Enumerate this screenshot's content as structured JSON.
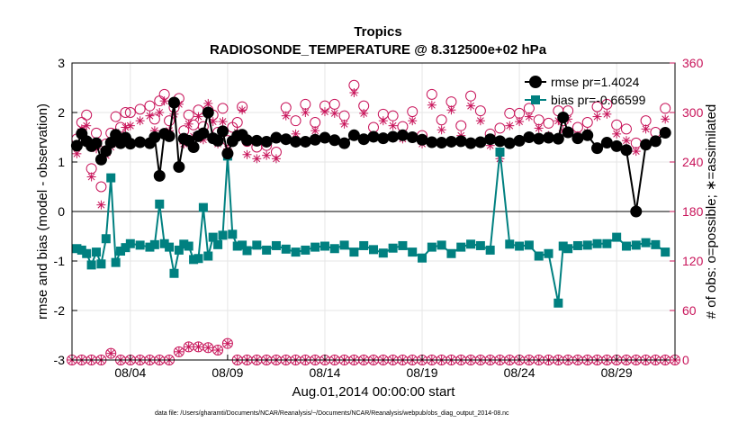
{
  "chart_data": {
    "type": "line",
    "title": "Tropics",
    "subtitle": "RADIOSONDE_TEMPERATURE @ 8.312500e+02 hPa",
    "xlabel": "Aug.01,2014 00:00:00 start",
    "ylabel": "rmse and bias (model - observation)",
    "ylabel_right": "# of obs: o=possible; ∗=assimilated",
    "footnote": "data file: /Users/gharamti/Documents/NCAR/Reanalysis/~/Documents/NCAR/Reanalysis/webpub/obs_diag_output_2014-08.nc",
    "xlim": [
      1,
      32
    ],
    "ylim": [
      -3,
      3
    ],
    "ylim_right": [
      0,
      360
    ],
    "x_ticks": [
      4,
      9,
      14,
      19,
      24,
      29
    ],
    "x_tick_labels": [
      "08/04",
      "08/09",
      "08/14",
      "08/19",
      "08/24",
      "08/29"
    ],
    "y_ticks": [
      -3,
      -2,
      -1,
      0,
      1,
      2,
      3
    ],
    "y_tick_labels": [
      "-3",
      "-2",
      "-1",
      "0",
      "1",
      "2",
      "3"
    ],
    "y_right_ticks": [
      0,
      60,
      120,
      180,
      240,
      300,
      360
    ],
    "y_right_tick_labels": [
      "0",
      "60",
      "120",
      "180",
      "240",
      "300",
      "360"
    ],
    "zero_line": 0,
    "legend_position": "top-right",
    "colors": {
      "rmse": "#000000",
      "bias": "#008080",
      "obs": "#c8145a",
      "grid": "#e6e6e6"
    },
    "series": [
      {
        "name": "rmse",
        "legend": "rmse pr=1.4024",
        "x": [
          1.25,
          1.5,
          1.75,
          2.0,
          2.25,
          2.5,
          2.75,
          3.0,
          3.25,
          3.5,
          3.75,
          4.0,
          4.5,
          5.0,
          5.25,
          5.5,
          5.75,
          6.0,
          6.25,
          6.5,
          6.75,
          7.0,
          7.25,
          7.5,
          7.75,
          8.0,
          8.25,
          8.5,
          8.75,
          9.0,
          9.25,
          9.5,
          9.75,
          10.0,
          10.5,
          11.0,
          11.5,
          12.0,
          12.5,
          13.0,
          13.5,
          14.0,
          14.5,
          15.0,
          15.5,
          16.0,
          16.5,
          17.0,
          17.5,
          18.0,
          18.5,
          19.0,
          19.5,
          20.0,
          20.5,
          21.0,
          21.5,
          22.0,
          22.5,
          23.0,
          23.5,
          24.0,
          24.5,
          25.0,
          25.5,
          26.0,
          26.25,
          26.5,
          27.0,
          27.5,
          28.0,
          28.5,
          29.0,
          29.5,
          30.0,
          30.5,
          31.0,
          31.5
        ],
        "values": [
          1.33,
          1.57,
          1.42,
          1.32,
          1.38,
          1.05,
          1.22,
          1.39,
          1.55,
          1.38,
          1.49,
          1.37,
          1.4,
          1.38,
          1.5,
          0.72,
          1.57,
          1.52,
          2.2,
          0.9,
          1.47,
          1.43,
          1.3,
          1.52,
          1.58,
          2.0,
          1.48,
          1.43,
          1.62,
          1.17,
          1.42,
          1.53,
          1.55,
          1.44,
          1.43,
          1.41,
          1.49,
          1.46,
          1.41,
          1.41,
          1.45,
          1.49,
          1.44,
          1.38,
          1.54,
          1.46,
          1.51,
          1.48,
          1.51,
          1.54,
          1.5,
          1.45,
          1.4,
          1.39,
          1.41,
          1.42,
          1.38,
          1.4,
          1.46,
          1.42,
          1.38,
          1.43,
          1.5,
          1.47,
          1.49,
          1.47,
          1.9,
          1.6,
          1.48,
          1.54,
          1.28,
          1.39,
          1.32,
          1.24,
          0.0,
          1.35,
          1.42,
          1.59
        ]
      },
      {
        "name": "bias",
        "legend": "bias pr=-0.66599",
        "x": [
          1.25,
          1.5,
          1.75,
          2.0,
          2.25,
          2.5,
          2.75,
          3.0,
          3.25,
          3.5,
          3.75,
          4.0,
          4.5,
          5.0,
          5.25,
          5.5,
          5.75,
          6.0,
          6.25,
          6.5,
          6.75,
          7.0,
          7.25,
          7.5,
          7.75,
          8.0,
          8.25,
          8.5,
          8.75,
          9.0,
          9.25,
          9.5,
          9.75,
          10.0,
          10.5,
          11.0,
          11.5,
          12.0,
          12.5,
          13.0,
          13.5,
          14.0,
          14.5,
          15.0,
          15.5,
          16.0,
          16.5,
          17.0,
          17.5,
          18.0,
          18.5,
          19.0,
          19.5,
          20.0,
          20.5,
          21.0,
          21.5,
          22.0,
          22.5,
          23.0,
          23.5,
          24.0,
          24.5,
          25.0,
          25.5,
          26.0,
          26.25,
          26.5,
          27.0,
          27.5,
          28.0,
          28.5,
          29.0,
          29.5,
          30.0,
          30.5,
          31.0,
          31.5
        ],
        "values": [
          -0.75,
          -0.78,
          -0.85,
          -1.08,
          -0.82,
          -1.06,
          -0.55,
          0.68,
          -1.03,
          -0.8,
          -0.73,
          -0.65,
          -0.68,
          -0.72,
          -0.67,
          0.15,
          -0.65,
          -0.72,
          -1.25,
          -0.78,
          -0.66,
          -0.7,
          -0.97,
          -0.95,
          0.08,
          -0.9,
          -0.52,
          -0.67,
          -0.48,
          1.12,
          -0.46,
          -0.7,
          -0.68,
          -0.79,
          -0.68,
          -0.78,
          -0.69,
          -0.76,
          -0.82,
          -0.78,
          -0.72,
          -0.7,
          -0.75,
          -0.68,
          -0.82,
          -0.69,
          -0.77,
          -0.84,
          -0.74,
          -0.69,
          -0.82,
          -0.94,
          -0.72,
          -0.68,
          -0.85,
          -0.72,
          -0.66,
          -0.69,
          -0.78,
          1.2,
          -0.66,
          -0.7,
          -0.68,
          -0.9,
          -0.85,
          -1.85,
          -0.7,
          -0.75,
          -0.69,
          -0.68,
          -0.65,
          -0.65,
          -0.52,
          -0.7,
          -0.68,
          -0.63,
          -0.67,
          -0.82
        ]
      },
      {
        "name": "obs possible",
        "marker": "o",
        "axis": "right",
        "x": [
          1.25,
          1.5,
          1.75,
          2.0,
          2.25,
          2.5,
          2.75,
          3.0,
          3.25,
          3.5,
          3.75,
          4.0,
          4.5,
          5.0,
          5.25,
          5.5,
          5.75,
          6.0,
          6.25,
          6.5,
          6.75,
          7.0,
          7.25,
          7.5,
          7.75,
          8.0,
          8.25,
          8.5,
          8.75,
          9.0,
          9.25,
          9.5,
          9.75,
          10.0,
          10.5,
          11.0,
          11.5,
          12.0,
          12.5,
          13.0,
          13.5,
          14.0,
          14.5,
          15.0,
          15.5,
          16.0,
          16.5,
          17.0,
          17.5,
          18.0,
          18.5,
          19.0,
          19.5,
          20.0,
          20.5,
          21.0,
          21.5,
          22.0,
          22.5,
          23.0,
          23.5,
          24.0,
          24.5,
          25.0,
          25.5,
          26.0,
          26.25,
          26.5,
          27.0,
          27.5,
          28.0,
          28.5,
          29.0,
          29.5,
          30.0,
          30.5,
          31.0,
          31.5
        ],
        "values": [
          268,
          288,
          297,
          232,
          275,
          210,
          262,
          275,
          295,
          282,
          300,
          300,
          304,
          308,
          292,
          314,
          322,
          290,
          306,
          317,
          278,
          297,
          285,
          303,
          283,
          303,
          297,
          276,
          305,
          266,
          282,
          288,
          307,
          265,
          258,
          260,
          252,
          306,
          290,
          310,
          288,
          308,
          310,
          296,
          333,
          308,
          282,
          298,
          296,
          283,
          301,
          272,
          322,
          291,
          313,
          284,
          320,
          302,
          274,
          281,
          299,
          299,
          305,
          291,
          287,
          302,
          290,
          302,
          282,
          288,
          307,
          310,
          285,
          280,
          263,
          290,
          276,
          305
        ],
        "possible_zero_row": 0,
        "possible_bump_x": [
          1.25,
          1.5,
          1.75,
          2.0,
          2.25,
          2.5,
          2.75,
          3.0,
          3.25,
          3.5,
          3.75,
          4.0,
          4.5,
          5.0,
          5.25,
          5.5,
          5.75,
          6.0,
          6.25,
          6.5,
          6.75,
          7.0,
          7.25,
          7.5,
          7.75,
          8.0,
          8.25,
          8.5,
          8.75,
          9.0,
          9.25,
          9.5,
          9.75,
          10.0
        ],
        "possible_bump_values": [
          0,
          0,
          0,
          0,
          0,
          0,
          8,
          8,
          0,
          0,
          0,
          0,
          0,
          0,
          0,
          0,
          0,
          0,
          8,
          10,
          14,
          16,
          16,
          16,
          12,
          15,
          14,
          12,
          16,
          20,
          14,
          0,
          0,
          0
        ]
      },
      {
        "name": "obs assimilated",
        "marker": "*",
        "axis": "right",
        "x": [
          1.25,
          1.5,
          1.75,
          2.0,
          2.25,
          2.5,
          2.75,
          3.0,
          3.25,
          3.5,
          3.75,
          4.0,
          4.5,
          5.0,
          5.25,
          5.5,
          5.75,
          6.0,
          6.25,
          6.5,
          6.75,
          7.0,
          7.25,
          7.5,
          7.75,
          8.0,
          8.25,
          8.5,
          8.75,
          9.0,
          9.25,
          9.5,
          9.75,
          10.0,
          10.5,
          11.0,
          11.5,
          12.0,
          12.5,
          13.0,
          13.5,
          14.0,
          14.5,
          15.0,
          15.5,
          16.0,
          16.5,
          17.0,
          17.5,
          18.0,
          18.5,
          19.0,
          19.5,
          20.0,
          20.5,
          21.0,
          21.5,
          22.0,
          22.5,
          23.0,
          23.5,
          24.0,
          24.5,
          25.0,
          25.5,
          26.0,
          26.25,
          26.5,
          27.0,
          27.5,
          28.0,
          28.5,
          29.0,
          29.5,
          30.0,
          30.5,
          31.0,
          31.5
        ],
        "values": [
          250,
          280,
          284,
          222,
          256,
          188,
          248,
          258,
          276,
          268,
          282,
          284,
          290,
          296,
          278,
          300,
          314,
          278,
          298,
          310,
          262,
          286,
          271,
          295,
          267,
          311,
          289,
          262,
          289,
          256,
          268,
          276,
          303,
          249,
          244,
          248,
          244,
          296,
          274,
          300,
          278,
          301,
          299,
          286,
          324,
          299,
          270,
          290,
          284,
          268,
          290,
          262,
          309,
          279,
          303,
          272,
          308,
          290,
          260,
          244,
          284,
          289,
          295,
          281,
          272,
          290,
          278,
          292,
          272,
          276,
          295,
          298,
          274,
          266,
          253,
          280,
          266,
          292
        ],
        "assimilated_bump_values": [
          0,
          0,
          0,
          0,
          0,
          0,
          8,
          8,
          0,
          0,
          0,
          0,
          0,
          0,
          0,
          0,
          0,
          0,
          8,
          10,
          14,
          16,
          16,
          16,
          12,
          15,
          14,
          12,
          16,
          20,
          14,
          0,
          0,
          0
        ]
      }
    ]
  }
}
